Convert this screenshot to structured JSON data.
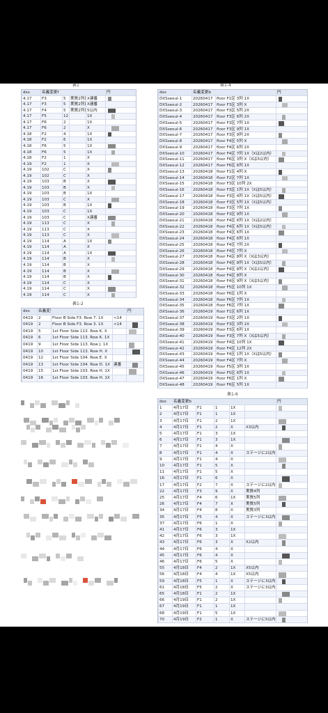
{
  "captions": {
    "t1": "表1",
    "t2": "表1-2",
    "t3": "表1-4",
    "t4": "表1-6"
  },
  "tables": [
    {
      "header": [
        "dxs",
        "名義変更f",
        "円"
      ],
      "rows": [
        [
          "4.17",
          "F3",
          "5",
          "実質2列目",
          "X連番"
        ],
        [
          "4.17",
          "F3",
          "5",
          "実質2列目",
          "X連番"
        ],
        [
          "4.17",
          "F4",
          "5",
          "実質2列目",
          "5以内"
        ],
        [
          "4.17",
          "F5",
          "12",
          "",
          "1X"
        ],
        [
          "4.17",
          "F6",
          "2",
          "",
          "1X"
        ],
        [
          "4.17",
          "F6",
          "2",
          "",
          "X"
        ],
        [
          "4.18",
          "F2",
          "4",
          "",
          "1X"
        ],
        [
          "4.18",
          "F2",
          "6",
          "",
          "1X"
        ],
        [
          "4.18",
          "F6",
          "5",
          "",
          "1X"
        ],
        [
          "4.18",
          "F6",
          "5",
          "",
          "1X"
        ],
        [
          "4.18",
          "F2",
          "1",
          "",
          "X"
        ],
        [
          "4.19",
          "F2",
          "1",
          "",
          "X"
        ],
        [
          "4.19",
          "102",
          "C",
          "",
          "X"
        ],
        [
          "4.19",
          "102",
          "C",
          "",
          "X"
        ],
        [
          "4.19",
          "103",
          "B",
          "",
          "X"
        ],
        [
          "4.19",
          "103",
          "B",
          "",
          "X"
        ],
        [
          "4.19",
          "103",
          "B",
          "",
          "1X"
        ],
        [
          "4.19",
          "103",
          "C",
          "",
          "X"
        ],
        [
          "4.19",
          "103",
          "B",
          "",
          "1X"
        ],
        [
          "4.19",
          "103",
          "C",
          "",
          "1X"
        ],
        [
          "4.19",
          "103",
          "C",
          "",
          "X連番"
        ],
        [
          "4.19",
          "113",
          "C",
          "",
          "X"
        ],
        [
          "4.19",
          "113",
          "C",
          "",
          "X"
        ],
        [
          "4.19",
          "113",
          "C",
          "",
          "X"
        ],
        [
          "4.19",
          "114",
          "A",
          "",
          "1X"
        ],
        [
          "4.19",
          "114",
          "A",
          "",
          "X"
        ],
        [
          "4.19",
          "114",
          "A",
          "",
          "1X"
        ],
        [
          "4.19",
          "114",
          "B",
          "",
          "X"
        ],
        [
          "4.19",
          "114",
          "B",
          "",
          "X"
        ],
        [
          "4.19",
          "114",
          "B",
          "",
          "X"
        ],
        [
          "4.19",
          "114",
          "B",
          "",
          "X"
        ],
        [
          "4.19",
          "114",
          "C",
          "",
          "X"
        ],
        [
          "4.19",
          "114",
          "C",
          "",
          "X"
        ],
        [
          "4.19",
          "114",
          "C",
          "",
          "X"
        ]
      ]
    },
    {
      "header": [
        "dxs",
        "名義変更b",
        "円"
      ],
      "rows": [
        [
          "0419",
          "2",
          "Floor B Side F3. Row 7. 1X",
          "<14"
        ],
        [
          "0419",
          "2",
          "Floor B Side F3. Row 3. 1X",
          "<14"
        ],
        [
          "0419",
          "5",
          "1st Floor Side 113. Row K. X"
        ],
        [
          "0419",
          "6",
          "1st Floor Side 113. Row K. 1X"
        ],
        [
          "0419",
          "9",
          "1st Floor Side 113. Row J. 1X"
        ],
        [
          "0419",
          "10",
          "1st Floor Side 113. Row H. X"
        ],
        [
          "0419",
          "12",
          "1st Floor Side 104. Row E. X"
        ],
        [
          "0419",
          "13",
          "1st Floor Side 104. Row D. 1X",
          "連番"
        ],
        [
          "0419",
          "15",
          "1st Floor Side 103. Row H. 1X"
        ],
        [
          "0419",
          "16",
          "1st Floor Side 103. Row H. 1X"
        ]
      ]
    },
    {
      "header": [
        "dxs",
        "名義変更b",
        "円"
      ],
      "rows": [
        [
          "DXSseoul-1",
          "20260417",
          "floor F1区 3列 1X"
        ],
        [
          "DXSseoul-2",
          "20260417",
          "floor F3区 3列 X"
        ],
        [
          "DXSseoul-3",
          "20260417",
          "floor F3区 5列 2X"
        ],
        [
          "DXSseoul-4",
          "20260417",
          "floor F3区 6列 2X"
        ],
        [
          "DXSseoul-5",
          "20260417",
          "floor F3区 7列 1X"
        ],
        [
          "DXSseoul-6",
          "20260417",
          "floor F3区 9列 1X"
        ],
        [
          "DXSseoul-7",
          "20260417",
          "floor F3区 9列 2X"
        ],
        [
          "DXSseoul-8",
          "20260417",
          "floor F4区 5列 X"
        ],
        [
          "DXSseoul-9",
          "20260417",
          "floor F4区 6列 2X"
        ],
        [
          "DXSseoul-10",
          "20260417",
          "floor F4区 7列 1X（Xは2以内）"
        ],
        [
          "DXSseoul-11",
          "20260417",
          "floor F6区 3列 X（Xは5以内）"
        ],
        [
          "DXSseoul-12",
          "20260417",
          "floor F6区 6列 1X"
        ],
        [
          "DXSseoul-13",
          "20260418",
          "floor F1区 4列 X"
        ],
        [
          "DXSseoul-14",
          "20260418",
          "floor F2区 7列 1X"
        ],
        [
          "DXSseoul-15",
          "20260418",
          "floor F3区 10列 2X"
        ],
        [
          "DXSseoul-16",
          "20260418",
          "floor F3区 1列 1X（Xは5以内）"
        ],
        [
          "DXSseoul-17",
          "20260418",
          "floor F3区 4列 1X（Xは5以内）"
        ],
        [
          "DXSseoul-18",
          "20260418",
          "floor F3区 5列 1X（Xは5以内）"
        ],
        [
          "DXSseoul-19",
          "20260418",
          "floor F3区 7列 1X"
        ],
        [
          "DXSseoul-20",
          "20260418",
          "floor F3区 9列 1X"
        ],
        [
          "DXSseoul-21",
          "20260418",
          "floor F4区 6列 1X（Xは2以内）"
        ],
        [
          "DXSseoul-22",
          "20260418",
          "floor F4区 6列 1X（Xは5以内）"
        ],
        [
          "DXSseoul-23",
          "20260418",
          "floor F4区 6列 1X"
        ],
        [
          "DXSseoul-24",
          "20260418",
          "floor F4区 6列 1X"
        ],
        [
          "DXSseoul-25",
          "20260418",
          "floor F4区 7列 2X"
        ],
        [
          "DXSseoul-26",
          "20260418",
          "floor F4区 7列 X"
        ],
        [
          "DXSseoul-27",
          "20260418",
          "floor F4区 8列 X（Xは3以内）"
        ],
        [
          "DXSseoul-28",
          "20260418",
          "floor F4区 8列 1X（Xは5以内）"
        ],
        [
          "DXSseoul-29",
          "20260418",
          "floor F4区 8列 X（Xは2以内）"
        ],
        [
          "DXSseoul-30",
          "20260418",
          "floor F4区 8列 X"
        ],
        [
          "DXSseoul-31",
          "20260418",
          "floor F4区 9列 X（Xは5以内）"
        ],
        [
          "DXSseoul-32",
          "20260418",
          "floor F5区 10列 1X"
        ],
        [
          "DXSseoul-33",
          "20260418",
          "floor F6区 1列 X"
        ],
        [
          "DXSseoul-34",
          "20260418",
          "floor F6区 7列 1X"
        ],
        [
          "DXSseoul-35",
          "20260418",
          "floor F6区 7列 1X"
        ],
        [
          "DXSseoul-36",
          "20260419",
          "floor F1区 6列 1X"
        ],
        [
          "DXSseoul-37",
          "20260419",
          "floor F3区 2列 1X"
        ],
        [
          "DXSseoul-38",
          "20260419",
          "floor F3区 3列 2X"
        ],
        [
          "DXSseoul-39",
          "20260419",
          "floor F3区 6列 1X"
        ],
        [
          "DXSseoul-40",
          "20260419",
          "floor F3区 7列 X（Xは5以内）"
        ],
        [
          "DXSseoul-41",
          "20260419",
          "floor F4区 10列 1X"
        ],
        [
          "DXSseoul-42",
          "20260419",
          "floor F4区 12列 2X"
        ],
        [
          "DXSseoul-43",
          "20260419",
          "floor F4区 1列 1X（Xは5以内）"
        ],
        [
          "DXSseoul-44",
          "20260419",
          "floor F4区 7列 X"
        ],
        [
          "DXSseoul-45",
          "20260419",
          "floor F5区 3列 1X"
        ],
        [
          "DXSseoul-46",
          "20260419",
          "floor F5区 6列 1X"
        ],
        [
          "DXSseoul-47",
          "20260419",
          "floor F6区 1列 X"
        ],
        [
          "DXSseoul-48",
          "20260419",
          "floor F6区 5列 1X"
        ]
      ]
    },
    {
      "header": [
        "dxs",
        "名義変更b",
        "円"
      ],
      "rows": [
        [
          "1",
          "4月17日",
          "F1",
          "1",
          "1X"
        ],
        [
          "2",
          "4月17日",
          "F1",
          "1",
          "1X"
        ],
        [
          "3",
          "4月17日",
          "F1",
          "2",
          "1X"
        ],
        [
          "4",
          "4月17日",
          "F1",
          "2",
          "X",
          "X3以内"
        ],
        [
          "5",
          "4月17日",
          "F1",
          "3",
          "1X"
        ],
        [
          "6",
          "4月17日",
          "F1",
          "3",
          "1X"
        ],
        [
          "7",
          "4月17日",
          "F1",
          "4",
          "X"
        ],
        [
          "8",
          "4月17日",
          "F1",
          "4",
          "X",
          "ステージに2以内"
        ],
        [
          "9",
          "4月17日",
          "F1",
          "4",
          "X"
        ],
        [
          "10",
          "4月17日",
          "F1",
          "5",
          "X"
        ],
        [
          "11",
          "4月17日",
          "F1",
          "5",
          "X"
        ],
        [
          "16",
          "4月17日",
          "F1",
          "6",
          "X"
        ],
        [
          "17",
          "4月17日",
          "F2",
          "7",
          "X",
          "ステージに2以内"
        ],
        [
          "22",
          "4月17日",
          "F3",
          "9",
          "X",
          "実質4列"
        ],
        [
          "25",
          "4月17日",
          "F4",
          "6",
          "1X",
          "実質5列"
        ],
        [
          "26",
          "4月17日",
          "F4",
          "7",
          "X",
          "実質5列"
        ],
        [
          "34",
          "4月17日",
          "F4",
          "8",
          "X",
          "実質3列"
        ],
        [
          "35",
          "4月17日",
          "F5",
          "4",
          "X",
          "ステージに3以内"
        ],
        [
          "37",
          "4月17日",
          "F6",
          "1",
          "X"
        ],
        [
          "41",
          "4月17日",
          "F6",
          "3",
          "1X"
        ],
        [
          "42",
          "4月17日",
          "F6",
          "3",
          "1X"
        ],
        [
          "43",
          "4月17日",
          "F6",
          "3",
          "X",
          "X2以内"
        ],
        [
          "44",
          "4月17日",
          "F6",
          "4",
          "X"
        ],
        [
          "45",
          "4月17日",
          "F6",
          "4",
          "X"
        ],
        [
          "46",
          "4月17日",
          "F6",
          "5",
          "X"
        ],
        [
          "55",
          "4月18日",
          "F4",
          "2",
          "1X",
          "X5以内"
        ],
        [
          "56",
          "4月18日",
          "F4",
          "4",
          "1X",
          "X5以内"
        ],
        [
          "59",
          "4月18日",
          "F5",
          "1",
          "X",
          "ステージに3以内"
        ],
        [
          "61",
          "4月18日",
          "F5",
          "2",
          "X",
          "ステージに3以内"
        ],
        [
          "65",
          "4月18日",
          "F1",
          "2",
          "1X"
        ],
        [
          "66",
          "4月19日",
          "F1",
          "2",
          "1X"
        ],
        [
          "67",
          "4月19日",
          "F1",
          "1",
          "1X"
        ],
        [
          "68",
          "4月19日",
          "F1",
          "5",
          "1X"
        ],
        [
          "70",
          "4月19日",
          "F2",
          "1",
          "X",
          "ステージに5以内"
        ]
      ]
    }
  ]
}
